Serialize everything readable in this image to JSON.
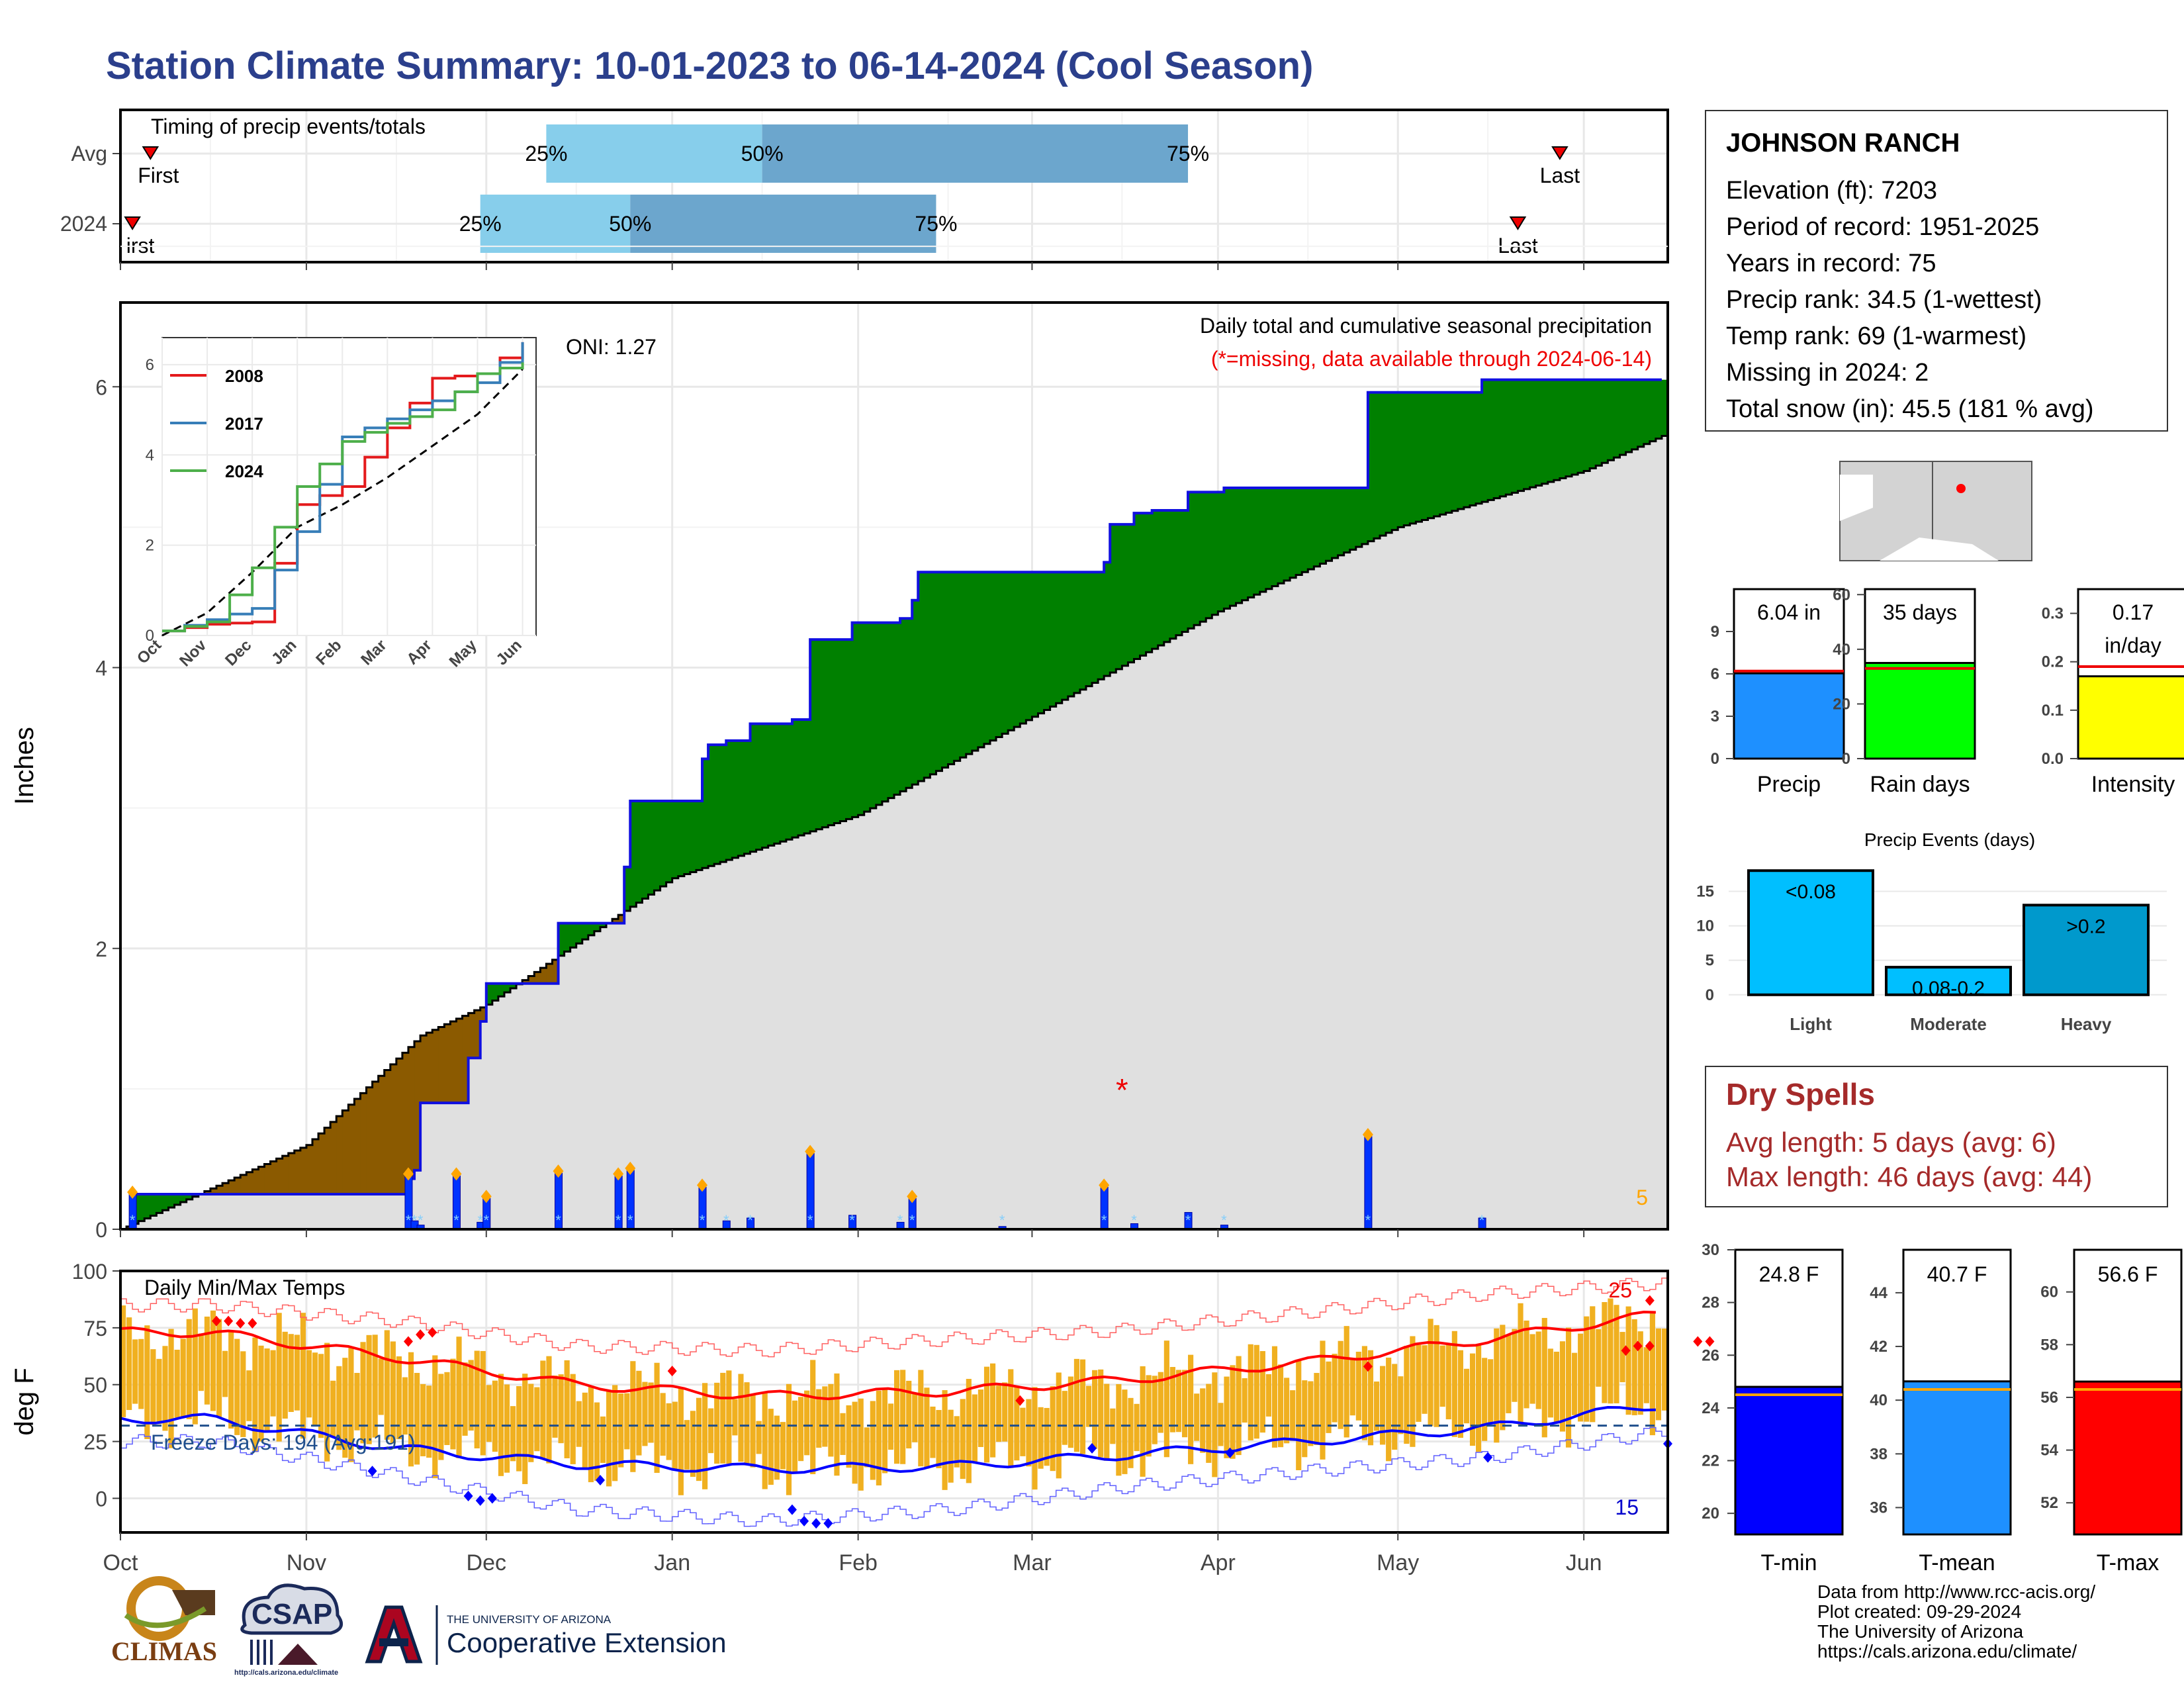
{
  "title": "Station Climate Summary: 10-01-2023 to 06-14-2024 (Cool Season)",
  "station": {
    "name": "JOHNSON RANCH",
    "rows": [
      "Elevation (ft): 7203",
      "Period of record: 1951-2025",
      "Years in record: 75",
      "Precip rank: 34.5 (1-wettest)",
      "Temp rank: 69 (1-warmest)",
      "Missing in 2024: 2",
      "Total snow (in): 45.5 (181 % avg)"
    ]
  },
  "dry_spells": {
    "title": "Dry Spells",
    "avg_length": "Avg length: 5 days (avg: 6)",
    "max_length": "Max length: 46 days (avg: 44)"
  },
  "footer": [
    "Data from http://www.rcc-acis.org/",
    "Plot created: 09-29-2024",
    "The University of Arizona",
    "https://cals.arizona.edu/climate/"
  ],
  "logos": {
    "climas": "CLIMAS",
    "csap": "CSAP",
    "csap_url": "http://cals.arizona.edu/climate",
    "ua_small": "THE UNIVERSITY OF ARIZONA",
    "ua_big": "Cooperative Extension"
  },
  "colors": {
    "title": "#2b3f8c",
    "green": "#008000",
    "brown": "#8b5a00",
    "gray_area": "#e0e0e0",
    "precip_bar": "#0033ff",
    "light_blue": "#87ceeb",
    "mid_blue": "#6ca6cd",
    "tmax": "#ff0000",
    "tmin": "#0000ff",
    "temp_bar": "#f0b020"
  },
  "chart_data": [
    {
      "name": "timing",
      "type": "bar",
      "title": "Timing of precip events/totals",
      "rows": [
        {
          "label": "Avg",
          "first": "2023-10-06",
          "p25": "2023-12-11",
          "p50": "2024-01-16",
          "p75": "2024-03-27",
          "last": "2024-05-28",
          "first_label": "First",
          "last_label": "Last"
        },
        {
          "label": "2024",
          "first": "2023-10-03",
          "p25": "2023-11-30",
          "p50": "2023-12-25",
          "p75": "2024-02-14",
          "last": "2024-05-21",
          "first_label": "irst",
          "last_label": "Last"
        }
      ],
      "pct_labels": [
        "25%",
        "50%",
        "75%"
      ]
    },
    {
      "name": "precip",
      "type": "area",
      "title": "Daily total and cumulative seasonal precipitation",
      "subtitle": "(*=missing, data available through 2024-06-14)",
      "annotation": "ONI: 1.27",
      "ylabel": "Inches",
      "ylim": [
        0,
        6.6
      ],
      "yticks": [
        0,
        2,
        4,
        6
      ],
      "x_start": "2023-10-01",
      "x_end": "2024-06-14",
      "xticks": [
        "Oct",
        "Nov",
        "Dec",
        "Jan",
        "Feb",
        "Mar",
        "Apr",
        "May",
        "Jun"
      ],
      "corner_label": "5",
      "cumulative_steps": [
        {
          "date": "2023-10-01",
          "value": 0.0
        },
        {
          "date": "2023-10-03",
          "value": 0.25
        },
        {
          "date": "2023-11-18",
          "value": 0.36
        },
        {
          "date": "2023-11-19",
          "value": 0.42
        },
        {
          "date": "2023-11-20",
          "value": 0.9
        },
        {
          "date": "2023-11-28",
          "value": 1.22
        },
        {
          "date": "2023-11-30",
          "value": 1.48
        },
        {
          "date": "2023-12-01",
          "value": 1.75
        },
        {
          "date": "2023-12-13",
          "value": 2.18
        },
        {
          "date": "2023-12-24",
          "value": 2.58
        },
        {
          "date": "2023-12-25",
          "value": 3.05
        },
        {
          "date": "2024-01-06",
          "value": 3.35
        },
        {
          "date": "2024-01-07",
          "value": 3.45
        },
        {
          "date": "2024-01-10",
          "value": 3.48
        },
        {
          "date": "2024-01-14",
          "value": 3.6
        },
        {
          "date": "2024-01-21",
          "value": 3.63
        },
        {
          "date": "2024-01-24",
          "value": 4.2
        },
        {
          "date": "2024-01-31",
          "value": 4.32
        },
        {
          "date": "2024-02-08",
          "value": 4.35
        },
        {
          "date": "2024-02-10",
          "value": 4.48
        },
        {
          "date": "2024-02-11",
          "value": 4.68
        },
        {
          "date": "2024-03-13",
          "value": 4.75
        },
        {
          "date": "2024-03-14",
          "value": 5.02
        },
        {
          "date": "2024-03-18",
          "value": 5.1
        },
        {
          "date": "2024-03-21",
          "value": 5.12
        },
        {
          "date": "2024-03-27",
          "value": 5.25
        },
        {
          "date": "2024-04-02",
          "value": 5.28
        },
        {
          "date": "2024-04-26",
          "value": 5.96
        },
        {
          "date": "2024-05-15",
          "value": 6.05
        },
        {
          "date": "2024-06-14",
          "value": 6.05
        }
      ],
      "average_cumulative": [
        {
          "date": "2023-10-01",
          "value": 0.0
        },
        {
          "date": "2023-11-01",
          "value": 0.6
        },
        {
          "date": "2023-11-20",
          "value": 1.38
        },
        {
          "date": "2023-12-01",
          "value": 1.6
        },
        {
          "date": "2024-01-01",
          "value": 2.5
        },
        {
          "date": "2024-02-01",
          "value": 2.95
        },
        {
          "date": "2024-03-01",
          "value": 3.65
        },
        {
          "date": "2024-04-01",
          "value": 4.4
        },
        {
          "date": "2024-05-01",
          "value": 5.0
        },
        {
          "date": "2024-06-01",
          "value": 5.4
        },
        {
          "date": "2024-06-14",
          "value": 5.65
        }
      ],
      "daily": [
        {
          "date": "2023-10-03",
          "value": 0.25
        },
        {
          "date": "2023-11-18",
          "value": 0.38
        },
        {
          "date": "2023-11-19",
          "value": 0.06
        },
        {
          "date": "2023-11-20",
          "value": 0.03
        },
        {
          "date": "2023-11-26",
          "value": 0.38
        },
        {
          "date": "2023-11-30",
          "value": 0.05
        },
        {
          "date": "2023-12-01",
          "value": 0.22
        },
        {
          "date": "2023-12-13",
          "value": 0.4
        },
        {
          "date": "2023-12-23",
          "value": 0.38
        },
        {
          "date": "2023-12-25",
          "value": 0.42
        },
        {
          "date": "2024-01-06",
          "value": 0.3
        },
        {
          "date": "2024-01-10",
          "value": 0.06
        },
        {
          "date": "2024-01-14",
          "value": 0.08
        },
        {
          "date": "2024-01-24",
          "value": 0.54
        },
        {
          "date": "2024-01-31",
          "value": 0.1
        },
        {
          "date": "2024-02-08",
          "value": 0.05
        },
        {
          "date": "2024-02-10",
          "value": 0.22
        },
        {
          "date": "2024-02-25",
          "value": 0.02
        },
        {
          "date": "2024-03-13",
          "value": 0.3
        },
        {
          "date": "2024-03-18",
          "value": 0.04
        },
        {
          "date": "2024-03-27",
          "value": 0.12
        },
        {
          "date": "2024-04-02",
          "value": 0.03
        },
        {
          "date": "2024-04-26",
          "value": 0.66
        },
        {
          "date": "2024-05-15",
          "value": 0.08
        }
      ],
      "missing": {
        "date": "2024-03-16",
        "value": 1.0
      },
      "inset": {
        "type": "line",
        "yticks": [
          0,
          2,
          4,
          6
        ],
        "xticks": [
          "Oct",
          "Nov",
          "Dec",
          "Jan",
          "Feb",
          "Mar",
          "Apr",
          "May",
          "Jun"
        ],
        "series": [
          {
            "name": "2008",
            "color": "#e41a1c",
            "values": [
              0.1,
              0.25,
              0.3,
              2.9,
              3.3,
              4.6,
              5.7,
              5.8,
              6.5
            ]
          },
          {
            "name": "2017",
            "color": "#377eb8",
            "values": [
              0.1,
              0.35,
              0.6,
              2.3,
              4.4,
              4.8,
              5.2,
              5.6,
              6.5
            ]
          },
          {
            "name": "2024",
            "color": "#4daf4a",
            "values": [
              0.1,
              0.3,
              1.5,
              3.3,
              4.3,
              4.7,
              5.0,
              5.8,
              6.05
            ]
          }
        ],
        "average": [
          0.0,
          0.5,
          1.4,
          2.4,
          2.9,
          3.5,
          4.2,
          4.9,
          5.9
        ]
      }
    },
    {
      "name": "temps",
      "type": "bar",
      "title": "Daily Min/Max Temps",
      "ylabel": "deg F",
      "ylim": [
        -15,
        100
      ],
      "yticks": [
        0,
        25,
        50,
        75,
        100
      ],
      "freeze_label": "Freeze Days: 194 (Avg:191)",
      "freeze_line": 32,
      "top_right_label": "25",
      "bottom_right_label": "15",
      "tmax_avg_monthly": [
        73,
        62,
        50,
        45,
        47,
        52,
        60,
        70,
        82
      ],
      "tmin_avg_monthly": [
        35,
        22,
        15,
        13,
        14,
        19,
        25,
        31,
        42
      ],
      "tmax_record_monthly": [
        85,
        78,
        67,
        65,
        70,
        74,
        82,
        90,
        95
      ],
      "tmin_record_monthly": [
        25,
        10,
        -5,
        -10,
        -5,
        5,
        12,
        18,
        30
      ]
    },
    {
      "name": "totals",
      "type": "bar",
      "categories": [
        "Precip",
        "Rain days",
        "Intensity"
      ],
      "values": [
        6.04,
        35,
        0.17
      ],
      "averages": [
        6.2,
        33,
        0.19
      ],
      "labels": [
        "6.04 in",
        "35 days",
        "0.17"
      ],
      "intensity_unit": "in/day",
      "yticks": [
        [
          0,
          3,
          6,
          9
        ],
        [
          0,
          20,
          40,
          60
        ],
        [
          "0.0",
          "0.1",
          "0.2",
          "0.3"
        ]
      ]
    },
    {
      "name": "events",
      "type": "bar",
      "title": "Precip Events (days)",
      "categories": [
        "Light",
        "Moderate",
        "Heavy"
      ],
      "values": [
        18,
        4,
        13
      ],
      "labels": [
        "<0.08",
        "0.08-0.2",
        ">0.2"
      ],
      "yticks": [
        0,
        5,
        10,
        15
      ]
    },
    {
      "name": "temp_means",
      "type": "bar",
      "categories": [
        "T-min",
        "T-mean",
        "T-max"
      ],
      "values": [
        24.8,
        40.7,
        56.6
      ],
      "labels": [
        "24.8 F",
        "40.7 F",
        "56.6 F"
      ],
      "averages": [
        24.5,
        40.4,
        56.3
      ],
      "yticks": [
        [
          20,
          22,
          24,
          26,
          28,
          30
        ],
        [
          36,
          38,
          40,
          42,
          44
        ],
        [
          52,
          54,
          56,
          58,
          60
        ]
      ]
    }
  ]
}
